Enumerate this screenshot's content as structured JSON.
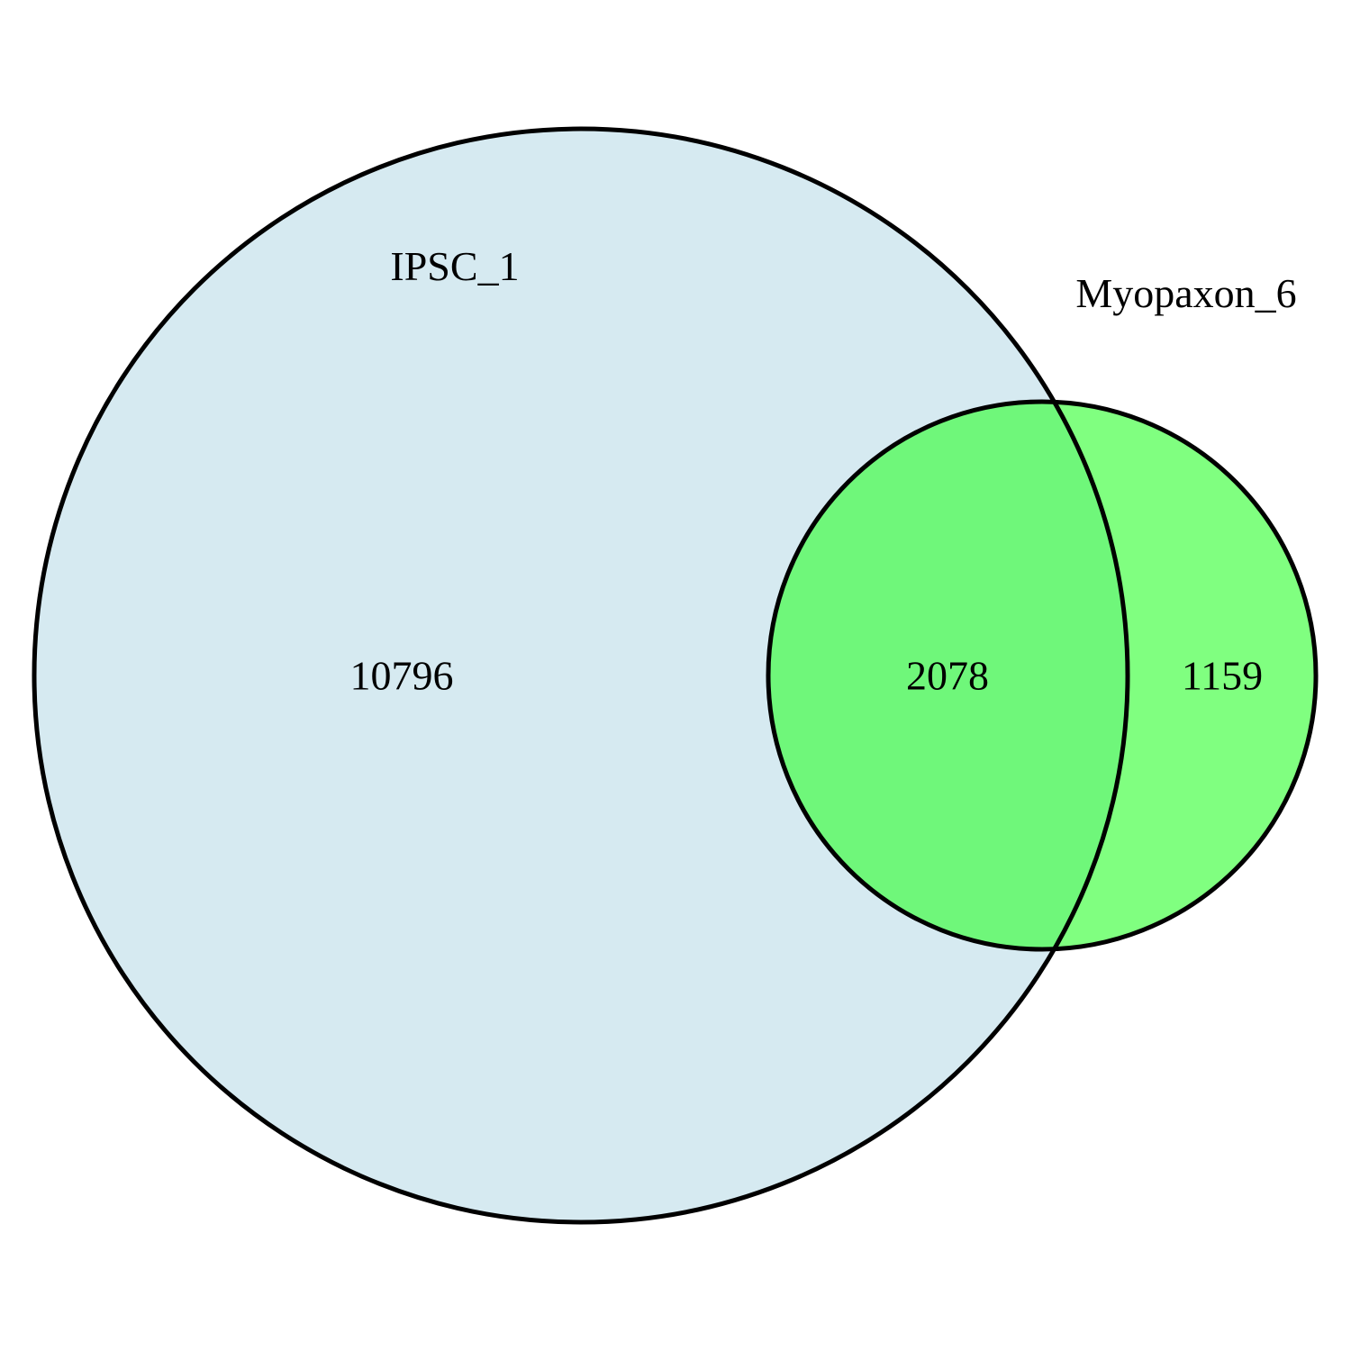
{
  "venn": {
    "sets": [
      {
        "label": "IPSC_1",
        "color": "#d6eaf1"
      },
      {
        "label": "Myopaxon_6",
        "color": "#80ff80"
      }
    ],
    "overlap_color": "#6ff77a",
    "counts": {
      "ipsc_only": "10796",
      "overlap": "2078",
      "myopaxon_only": "1159"
    }
  }
}
